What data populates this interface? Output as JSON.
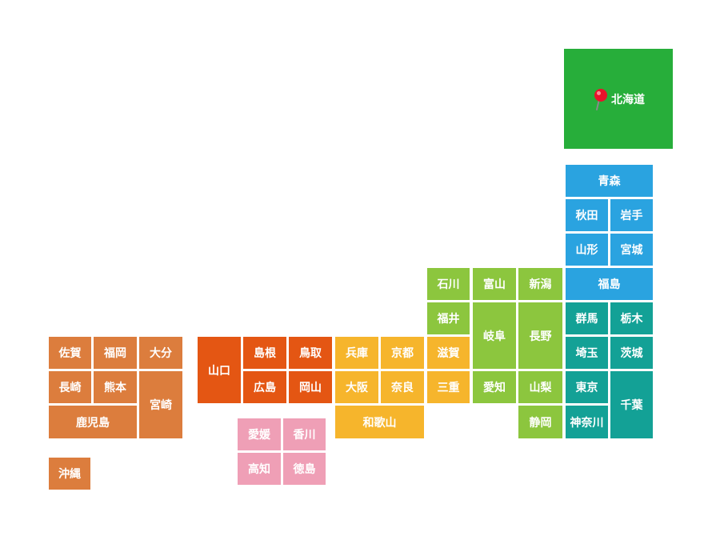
{
  "colors": {
    "hokkaido": "#27ae3a",
    "tohoku_kanto": "#2aa3e0",
    "kanto": "#13a196",
    "chubu_green": "#8cc63e",
    "kinki": "#f6b52c",
    "chugoku": "#e45613",
    "shikoku": "#ef9fb6",
    "kyushu": "#dc7d3d"
  },
  "marker_icon": "map-pin-icon",
  "prefectures": {
    "hokkaido": {
      "label": "北海道",
      "region": "hokkaido"
    },
    "aomori": {
      "label": "青森",
      "region": "tohoku_kanto"
    },
    "akita": {
      "label": "秋田",
      "region": "tohoku_kanto"
    },
    "iwate": {
      "label": "岩手",
      "region": "tohoku_kanto"
    },
    "yamagata": {
      "label": "山形",
      "region": "tohoku_kanto"
    },
    "miyagi": {
      "label": "宮城",
      "region": "tohoku_kanto"
    },
    "fukushima": {
      "label": "福島",
      "region": "tohoku_kanto"
    },
    "gunma": {
      "label": "群馬",
      "region": "kanto"
    },
    "tochigi": {
      "label": "栃木",
      "region": "kanto"
    },
    "saitama": {
      "label": "埼玉",
      "region": "kanto"
    },
    "ibaraki": {
      "label": "茨城",
      "region": "kanto"
    },
    "tokyo": {
      "label": "東京",
      "region": "kanto"
    },
    "chiba": {
      "label": "千葉",
      "region": "kanto"
    },
    "kanagawa": {
      "label": "神奈川",
      "region": "kanto"
    },
    "ishikawa": {
      "label": "石川",
      "region": "chubu_green"
    },
    "toyama": {
      "label": "富山",
      "region": "chubu_green"
    },
    "niigata": {
      "label": "新潟",
      "region": "chubu_green"
    },
    "fukui": {
      "label": "福井",
      "region": "chubu_green"
    },
    "gifu": {
      "label": "岐阜",
      "region": "chubu_green"
    },
    "nagano": {
      "label": "長野",
      "region": "chubu_green"
    },
    "aichi": {
      "label": "愛知",
      "region": "chubu_green"
    },
    "yamanashi": {
      "label": "山梨",
      "region": "chubu_green"
    },
    "shizuoka": {
      "label": "静岡",
      "region": "chubu_green"
    },
    "shiga": {
      "label": "滋賀",
      "region": "kinki"
    },
    "mie": {
      "label": "三重",
      "region": "kinki"
    },
    "hyogo": {
      "label": "兵庫",
      "region": "kinki"
    },
    "kyoto": {
      "label": "京都",
      "region": "kinki"
    },
    "osaka": {
      "label": "大阪",
      "region": "kinki"
    },
    "nara": {
      "label": "奈良",
      "region": "kinki"
    },
    "wakayama": {
      "label": "和歌山",
      "region": "kinki"
    },
    "yamaguchi": {
      "label": "山口",
      "region": "chugoku"
    },
    "shimane": {
      "label": "島根",
      "region": "chugoku"
    },
    "tottori": {
      "label": "鳥取",
      "region": "chugoku"
    },
    "hiroshima": {
      "label": "広島",
      "region": "chugoku"
    },
    "okayama": {
      "label": "岡山",
      "region": "chugoku"
    },
    "ehime": {
      "label": "愛媛",
      "region": "shikoku"
    },
    "kagawa": {
      "label": "香川",
      "region": "shikoku"
    },
    "kochi": {
      "label": "高知",
      "region": "shikoku"
    },
    "tokushima": {
      "label": "徳島",
      "region": "shikoku"
    },
    "saga": {
      "label": "佐賀",
      "region": "kyushu"
    },
    "fukuoka": {
      "label": "福岡",
      "region": "kyushu"
    },
    "oita": {
      "label": "大分",
      "region": "kyushu"
    },
    "nagasaki": {
      "label": "長崎",
      "region": "kyushu"
    },
    "kumamoto": {
      "label": "熊本",
      "region": "kyushu"
    },
    "miyazaki": {
      "label": "宮崎",
      "region": "kyushu"
    },
    "kagoshima": {
      "label": "鹿児島",
      "region": "kyushu"
    },
    "okinawa": {
      "label": "沖縄",
      "region": "kyushu"
    }
  }
}
